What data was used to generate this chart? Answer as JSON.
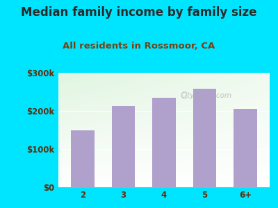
{
  "title": "Median family income by family size",
  "subtitle": "All residents in Rossmoor, CA",
  "categories": [
    "2",
    "3",
    "4",
    "5",
    "6+"
  ],
  "values": [
    150000,
    213000,
    235000,
    258000,
    205000
  ],
  "bar_color": "#b0a0cc",
  "background_outer": "#00e5ff",
  "title_color": "#2a2a2a",
  "subtitle_color": "#7a4010",
  "tick_label_color": "#5a3010",
  "ylim": [
    0,
    300000
  ],
  "yticks": [
    0,
    100000,
    200000,
    300000
  ],
  "ytick_labels": [
    "$0",
    "$100k",
    "$200k",
    "$300k"
  ],
  "watermark": "City-Data.com",
  "title_fontsize": 12,
  "subtitle_fontsize": 9.5,
  "tick_fontsize": 8.5
}
